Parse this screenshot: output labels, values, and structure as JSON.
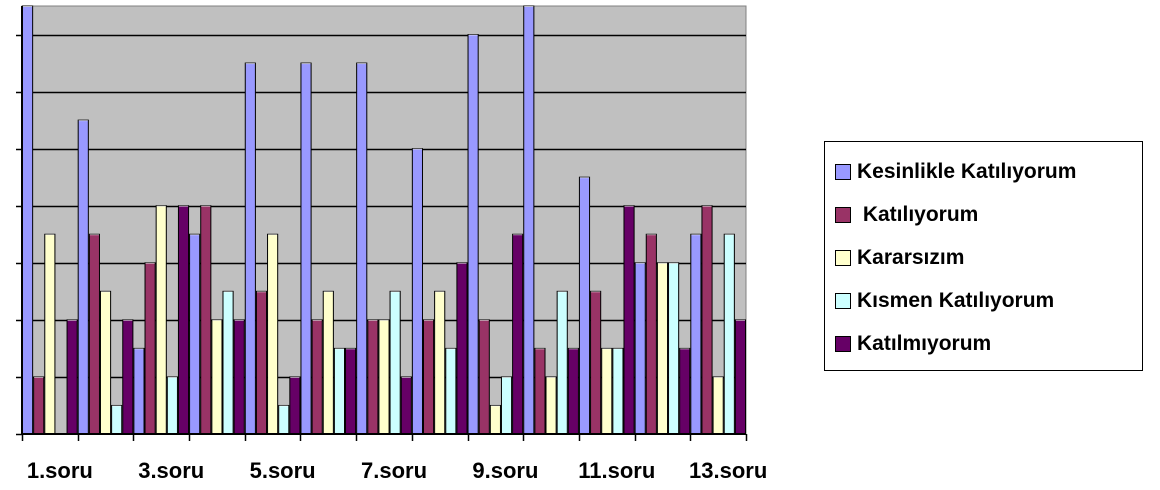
{
  "chart_data": {
    "type": "bar",
    "categories": [
      "1.soru",
      "2.soru",
      "3.soru",
      "4.soru",
      "5.soru",
      "6.soru",
      "7.soru",
      "8.soru",
      "9.soru",
      "10.soru",
      "11.soru",
      "12.soru",
      "13.soru"
    ],
    "tick_labels": [
      "1.soru",
      "3.soru",
      "5.soru",
      "7.soru",
      "9.soru",
      "11.soru",
      "13.soru"
    ],
    "series": [
      {
        "name": "Kesinlikle Katılıyorum",
        "color": "#9999FF",
        "values": [
          15,
          11,
          3,
          7,
          13,
          13,
          13,
          10,
          14,
          15,
          9,
          6,
          7
        ]
      },
      {
        "name": " Katılıyorum",
        "color": "#993366",
        "values": [
          2,
          7,
          6,
          8,
          5,
          4,
          4,
          4,
          4,
          3,
          5,
          7,
          8
        ]
      },
      {
        "name": "Kararsızım",
        "color": "#FFFFCC",
        "values": [
          7,
          5,
          8,
          4,
          7,
          5,
          4,
          5,
          1,
          2,
          3,
          6,
          2
        ]
      },
      {
        "name": "Kısmen Katılıyorum",
        "color": "#CCFFFF",
        "values": [
          0,
          1,
          2,
          5,
          1,
          3,
          5,
          3,
          2,
          5,
          3,
          6,
          7
        ]
      },
      {
        "name": "Katılmıyorum",
        "color": "#660066",
        "values": [
          4,
          4,
          8,
          4,
          2,
          3,
          2,
          6,
          7,
          3,
          8,
          3,
          4
        ]
      }
    ],
    "ylim": [
      0,
      15
    ],
    "grid": true,
    "legend_position": "right",
    "plot_background": "#C0C0C0"
  }
}
